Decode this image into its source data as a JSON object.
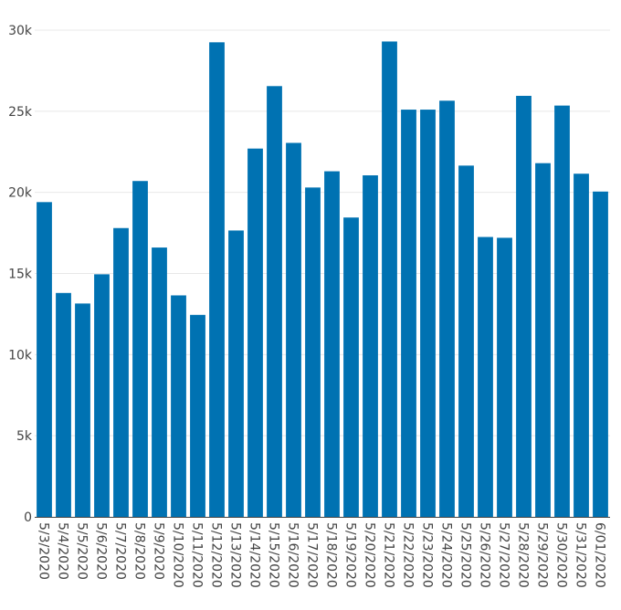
{
  "chart_data": {
    "type": "bar",
    "title": "",
    "xlabel": "",
    "ylabel": "",
    "ylim": [
      0,
      30000
    ],
    "yticks": [
      0,
      5000,
      10000,
      15000,
      20000,
      25000,
      30000
    ],
    "ytick_labels": [
      "0",
      "5k",
      "10k",
      "15k",
      "20k",
      "25k",
      "30k"
    ],
    "grid": true,
    "legend": "none",
    "bar_color": "#0072B2",
    "categories": [
      "5/3/2020",
      "5/4/2020",
      "5/5/2020",
      "5/6/2020",
      "5/7/2020",
      "5/8/2020",
      "5/9/2020",
      "5/10/2020",
      "5/11/2020",
      "5/12/2020",
      "5/13/2020",
      "5/14/2020",
      "5/15/2020",
      "5/16/2020",
      "5/17/2020",
      "5/18/2020",
      "5/19/2020",
      "5/20/2020",
      "5/21/2020",
      "5/22/2020",
      "5/23/2020",
      "5/24/2020",
      "5/25/2020",
      "5/26/2020",
      "5/27/2020",
      "5/28/2020",
      "5/29/2020",
      "5/30/2020",
      "5/31/2020",
      "6/01/2020"
    ],
    "values": [
      19400,
      13800,
      13150,
      14950,
      17800,
      20700,
      16600,
      13650,
      12450,
      29250,
      17650,
      22700,
      26550,
      23050,
      20300,
      21300,
      18450,
      21050,
      29300,
      25100,
      25100,
      25650,
      21650,
      17250,
      17200,
      25950,
      21800,
      25350,
      21150,
      20050
    ]
  }
}
